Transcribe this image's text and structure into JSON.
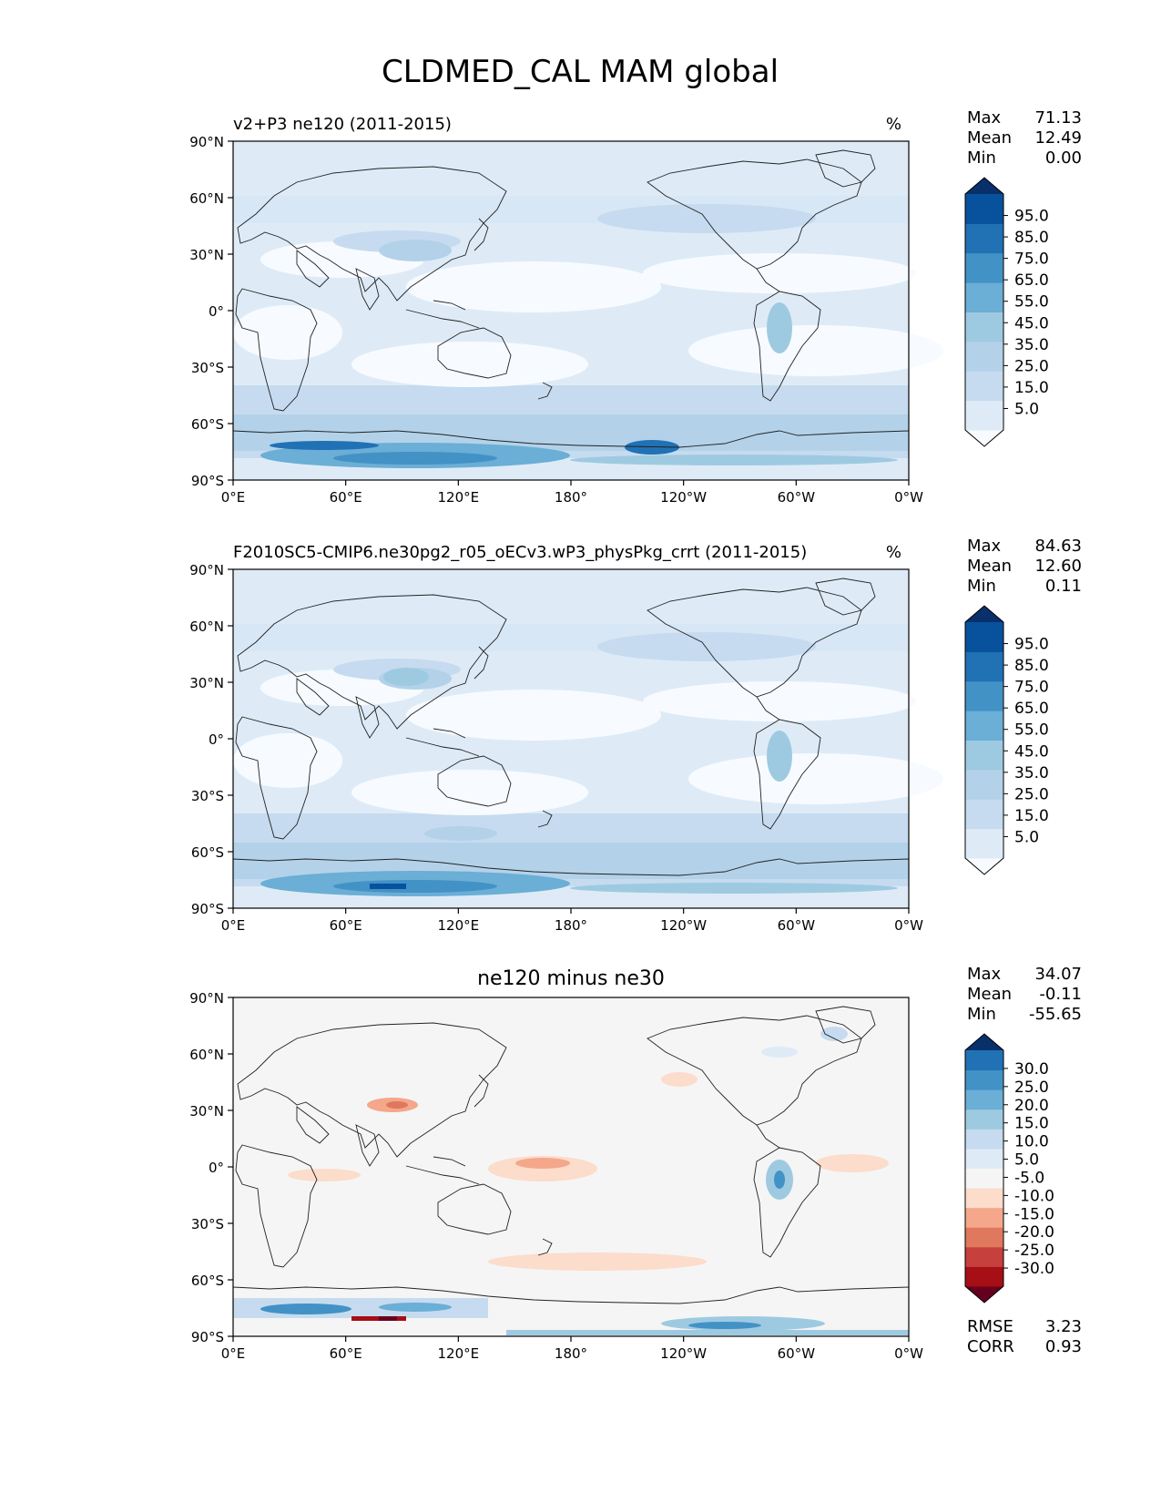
{
  "figure": {
    "title": "CLDMED_CAL MAM global"
  },
  "axes": {
    "lat_ticks": [
      "90°N",
      "60°N",
      "30°N",
      "0°",
      "30°S",
      "60°S",
      "90°S"
    ],
    "lon_ticks": [
      "0°E",
      "60°E",
      "120°E",
      "180°",
      "120°W",
      "60°W",
      "0°W"
    ]
  },
  "colors": {
    "blues": [
      "#f7fbff",
      "#deebf7",
      "#c6dbef",
      "#b3d2e9",
      "#9ecae1",
      "#6baed6",
      "#4292c6",
      "#2171b5",
      "#08519c",
      "#08306b"
    ],
    "diverging": [
      "#67001f",
      "#a50f15",
      "#c6403d",
      "#e0785d",
      "#f4a78a",
      "#fcdccb",
      "#f5f5f5",
      "#deebf7",
      "#c6dbef",
      "#9ecae1",
      "#6baed6",
      "#4292c6",
      "#2171b5",
      "#08306b"
    ]
  },
  "panels": [
    {
      "title_left": "v2+P3 ne120 (2011-2015)",
      "title_center": "",
      "units": "%",
      "stats": {
        "max_label": "Max",
        "max": "71.13",
        "mean_label": "Mean",
        "mean": "12.49",
        "min_label": "Min",
        "min": "0.00"
      },
      "colorbar": {
        "palette": "blues",
        "levels": [
          "95.0",
          "85.0",
          "75.0",
          "65.0",
          "55.0",
          "45.0",
          "35.0",
          "25.0",
          "15.0",
          "5.0"
        ]
      }
    },
    {
      "title_left": "F2010SC5-CMIP6.ne30pg2_r05_oECv3.wP3_physPkg_crrt (2011-2015)",
      "title_center": "",
      "units": "%",
      "stats": {
        "max_label": "Max",
        "max": "84.63",
        "mean_label": "Mean",
        "mean": "12.60",
        "min_label": "Min",
        "min": "0.11"
      },
      "colorbar": {
        "palette": "blues",
        "levels": [
          "95.0",
          "85.0",
          "75.0",
          "65.0",
          "55.0",
          "45.0",
          "35.0",
          "25.0",
          "15.0",
          "5.0"
        ]
      }
    },
    {
      "title_left": "",
      "title_center": "ne120 minus ne30",
      "units": "",
      "stats": {
        "max_label": "Max",
        "max": "34.07",
        "mean_label": "Mean",
        "mean": "-0.11",
        "min_label": "Min",
        "min": "-55.65"
      },
      "colorbar": {
        "palette": "diverging",
        "levels": [
          "30.0",
          "25.0",
          "20.0",
          "15.0",
          "10.0",
          "5.0",
          "-5.0",
          "-10.0",
          "-15.0",
          "-20.0",
          "-25.0",
          "-30.0"
        ]
      },
      "extra": {
        "rmse_label": "RMSE",
        "rmse": "3.23",
        "corr_label": "CORR",
        "corr": "0.93"
      }
    }
  ],
  "chart_data": [
    {
      "type": "heatmap",
      "title": "v2+P3 ne120 (2011-2015)",
      "units": "%",
      "x_ticks": [
        "0°E",
        "60°E",
        "120°E",
        "180°",
        "120°W",
        "60°W",
        "0°W"
      ],
      "y_ticks": [
        "90°N",
        "60°N",
        "30°N",
        "0°",
        "30°S",
        "60°S",
        "90°S"
      ],
      "contour_levels": [
        0,
        5,
        15,
        25,
        35,
        45,
        55,
        65,
        75,
        85,
        95,
        100
      ],
      "stats": {
        "max": 71.13,
        "mean": 12.49,
        "min": 0.0
      }
    },
    {
      "type": "heatmap",
      "title": "F2010SC5-CMIP6.ne30pg2_r05_oECv3.wP3_physPkg_crrt (2011-2015)",
      "units": "%",
      "x_ticks": [
        "0°E",
        "60°E",
        "120°E",
        "180°",
        "120°W",
        "60°W",
        "0°W"
      ],
      "y_ticks": [
        "90°N",
        "60°N",
        "30°N",
        "0°",
        "30°S",
        "60°S",
        "90°S"
      ],
      "contour_levels": [
        0,
        5,
        15,
        25,
        35,
        45,
        55,
        65,
        75,
        85,
        95,
        100
      ],
      "stats": {
        "max": 84.63,
        "mean": 12.6,
        "min": 0.11
      }
    },
    {
      "type": "heatmap",
      "title": "ne120 minus ne30",
      "x_ticks": [
        "0°E",
        "60°E",
        "120°E",
        "180°",
        "120°W",
        "60°W",
        "0°W"
      ],
      "y_ticks": [
        "90°N",
        "60°N",
        "30°N",
        "0°",
        "30°S",
        "60°S",
        "90°S"
      ],
      "contour_levels": [
        -30,
        -25,
        -20,
        -15,
        -10,
        -5,
        5,
        10,
        15,
        20,
        25,
        30
      ],
      "stats": {
        "max": 34.07,
        "mean": -0.11,
        "min": -55.65,
        "rmse": 3.23,
        "corr": 0.93
      }
    }
  ]
}
